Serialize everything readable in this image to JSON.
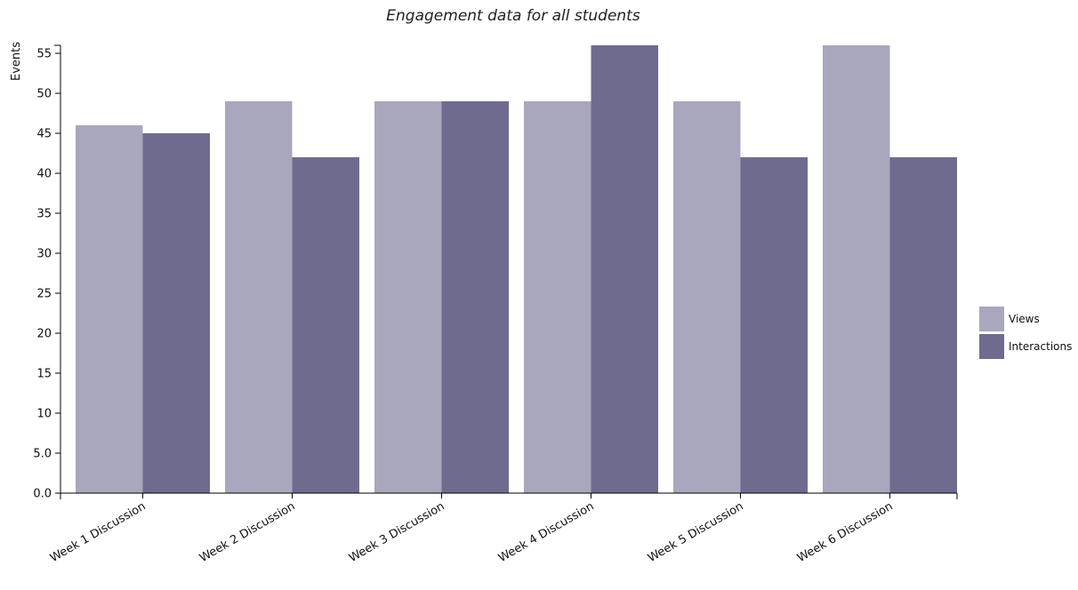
{
  "chart_data": {
    "type": "bar",
    "title": "Engagement data for all students",
    "xlabel": "",
    "ylabel": "Events",
    "categories": [
      "Week 1 Discussion",
      "Week 2 Discussion",
      "Week 3 Discussion",
      "Week 4 Discussion",
      "Week 5 Discussion",
      "Week 6 Discussion"
    ],
    "series": [
      {
        "name": "Views",
        "color": "#a9a7bd",
        "values": [
          46,
          49,
          49,
          49,
          49,
          56
        ]
      },
      {
        "name": "Interactions",
        "color": "#6e6b8f",
        "values": [
          45,
          42,
          49,
          56,
          42,
          42
        ]
      }
    ],
    "ylim": [
      0,
      56
    ],
    "yticks": [
      "0.0",
      "5.0",
      "10",
      "15",
      "20",
      "25",
      "30",
      "35",
      "40",
      "45",
      "50",
      "55"
    ],
    "ytick_values": [
      0,
      5,
      10,
      15,
      20,
      25,
      30,
      35,
      40,
      45,
      50,
      55
    ],
    "grid": false,
    "legend_position": "right"
  }
}
